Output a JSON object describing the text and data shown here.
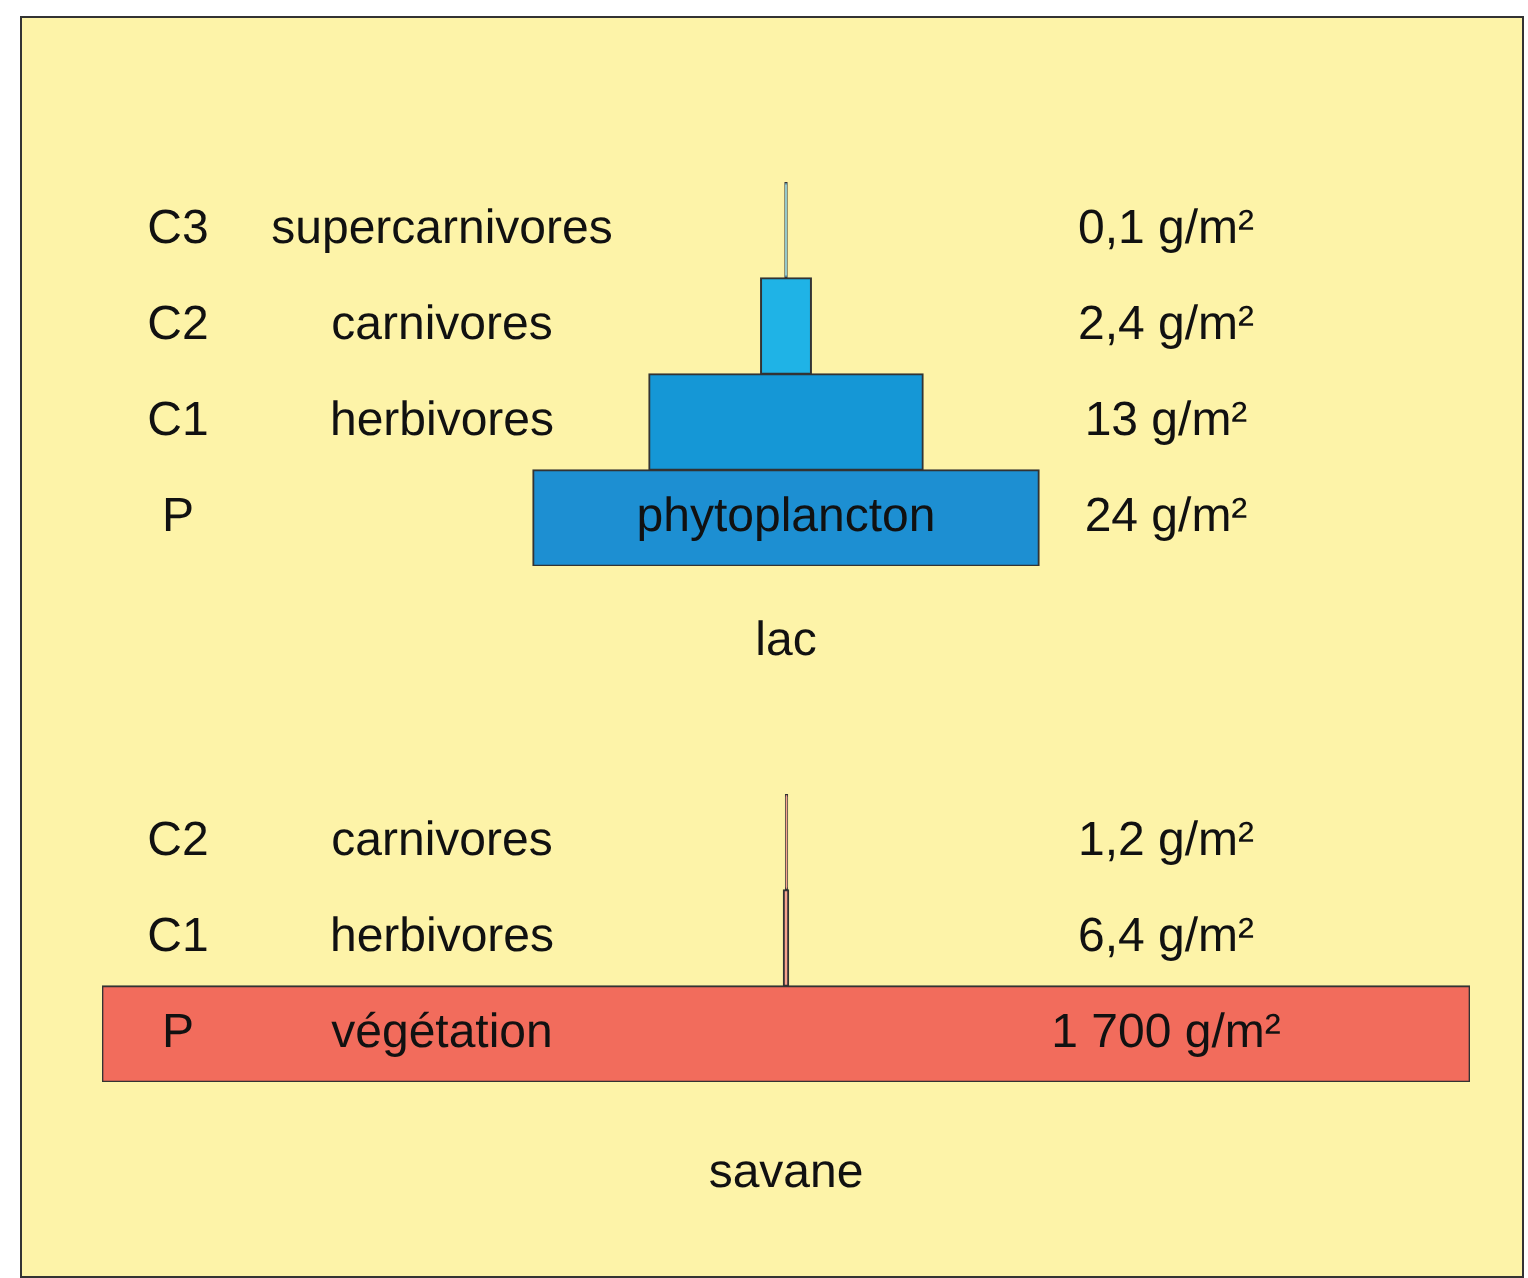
{
  "chart_data": [
    {
      "type": "other",
      "title": "lac",
      "categories": [
        "supercarnivores",
        "carnivores",
        "herbivores",
        "phytoplancton"
      ],
      "values": [
        0.1,
        2.4,
        13,
        24
      ],
      "colors": [
        "#84d4f2",
        "#1fb3e6",
        "#1597d6",
        "#1d8fd2"
      ],
      "value_labels": [
        "0,1 g/m²",
        "2,4 g/m²",
        "13 g/m²",
        "24 g/m²"
      ],
      "annotations": [
        {
          "text": "C3",
          "y": "supercarnivores"
        },
        {
          "text": "C2",
          "y": "carnivores"
        },
        {
          "text": "C1",
          "y": "herbivores"
        },
        {
          "text": "P",
          "y": "phytoplancton"
        }
      ]
    },
    {
      "type": "other",
      "title": "savane",
      "categories": [
        "carnivores",
        "herbivores",
        "végétation"
      ],
      "values": [
        1.2,
        6.4,
        1700
      ],
      "colors": [
        "#f7a28f",
        "#f7a28f",
        "#f26c5c"
      ],
      "value_labels": [
        "1,2 g/m²",
        "6,4 g/m²",
        "1 700 g/m²"
      ],
      "annotations": [
        {
          "text": "C2",
          "y": "carnivores"
        },
        {
          "text": "C1",
          "y": "herbivores"
        },
        {
          "text": "P",
          "y": "végétation"
        }
      ]
    }
  ]
}
